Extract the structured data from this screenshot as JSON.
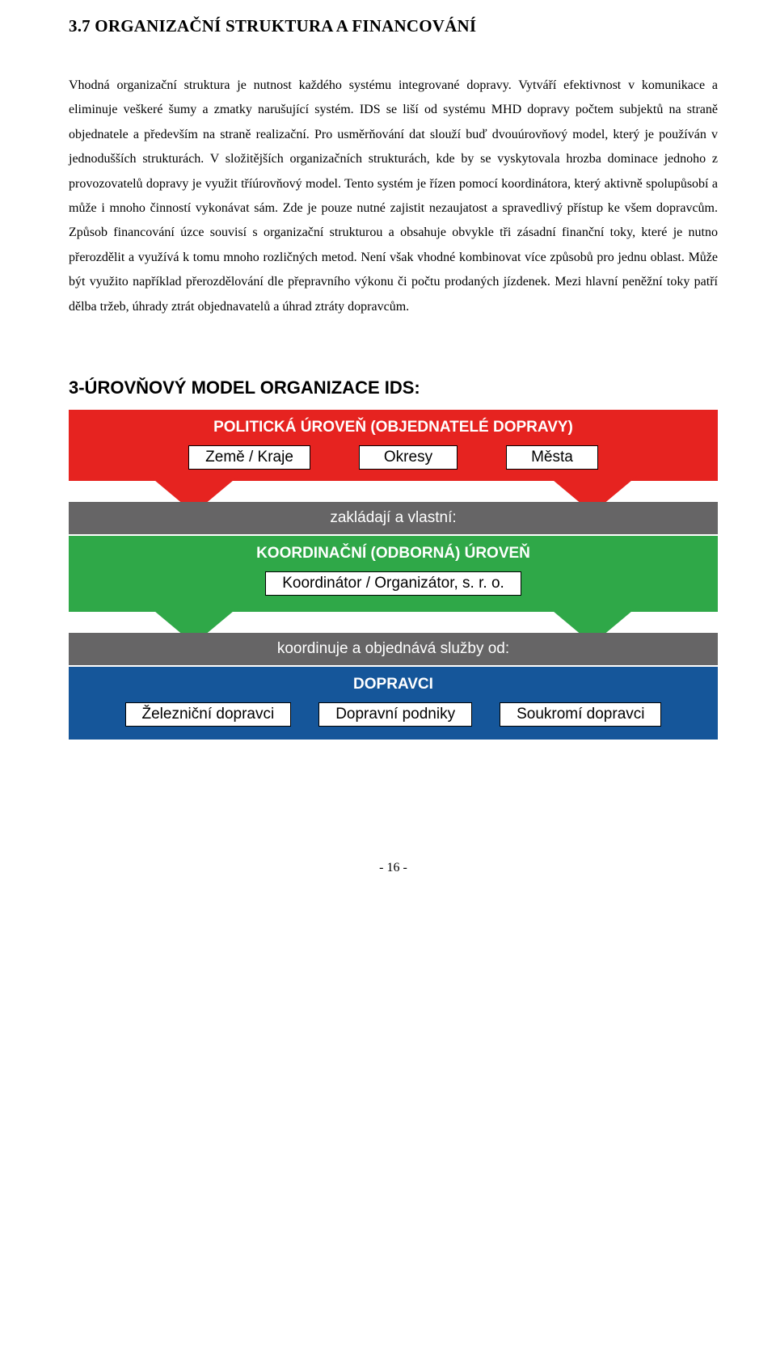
{
  "page": {
    "heading": "3.7 ORGANIZAČNÍ STRUKTURA A FINANCOVÁNÍ",
    "paragraph": "Vhodná organizační struktura je nutnost každého systému integrované dopravy. Vytváří efektivnost v komunikace a eliminuje veškeré šumy a zmatky narušující systém. IDS se liší od systému MHD dopravy  počtem subjektů na straně objednatele a především na straně realizační. Pro usměrňování dat slouží buď dvouúrovňový model, který je používán v jednodušších strukturách. V složitějších organizačních strukturách, kde by se vyskytovala hrozba dominace jednoho z provozovatelů dopravy je využit tříúrovňový model. Tento systém je řízen pomocí koordinátora, který aktivně spolupůsobí a může i mnoho činností vykonávat sám. Zde je pouze nutné zajistit nezaujatost a spravedlivý přístup ke všem dopravcům. Způsob financování úzce souvisí s organizační strukturou a obsahuje obvykle tři zásadní finanční toky, které je nutno přerozdělit a využívá k tomu mnoho rozličných metod. Není však vhodné kombinovat více způsobů pro jednu oblast. Může být využito například přerozdělování dle přepravního výkonu či počtu prodaných jízdenek.  Mezi hlavní peněžní toky patří dělba tržeb, úhrady ztrát objednavatelů a úhrad ztráty dopravcům.",
    "page_number": "- 16 -"
  },
  "diagram": {
    "title": "3-ÚROVŇOVÝ MODEL ORGANIZACE IDS:",
    "tiers": [
      {
        "header": "POLITICKÁ ÚROVEŇ (OBJEDNATELÉ DOPRAVY)",
        "color": "#e62320",
        "boxes": [
          "Země / Kraje",
          "Okresy",
          "Města"
        ]
      },
      {
        "header": "KOORDINAČNÍ (ODBORNÁ) ÚROVEŇ",
        "color": "#2fa848",
        "boxes": [
          "Koordinátor / Organizátor, s. r. o."
        ]
      },
      {
        "header": "DOPRAVCI",
        "color": "#15569a",
        "boxes": [
          "Železniční dopravci",
          "Dopravní podniky",
          "Soukromí dopravci"
        ]
      }
    ],
    "connectors": [
      {
        "label": "zakládají a vlastní:",
        "triangle_color": "#e62320"
      },
      {
        "label": "koordinuje a objednává služby od:",
        "triangle_color": "#2fa848"
      }
    ],
    "connector_bg": "#666566",
    "box_bg": "#ffffff",
    "box_border": "#000000",
    "title_fontsize": 22,
    "header_fontsize": 19,
    "box_fontsize": 19,
    "connector_fontsize": 19
  }
}
